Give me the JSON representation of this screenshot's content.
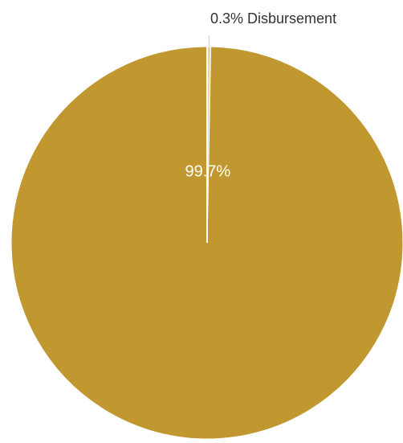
{
  "chart_data": {
    "type": "pie",
    "slices": [
      {
        "label": "",
        "value": 99.7,
        "display": "99.7%",
        "color": "#C1982F"
      },
      {
        "label": "Disbursement",
        "value": 0.3,
        "display": "0.3% Disbursement",
        "color": "#E9D59E"
      }
    ],
    "start_angle_deg": 0,
    "direction": "clockwise",
    "legend": "none",
    "text_colors": {
      "inside_label": "#ffffff",
      "outside_label": "#333333"
    }
  }
}
